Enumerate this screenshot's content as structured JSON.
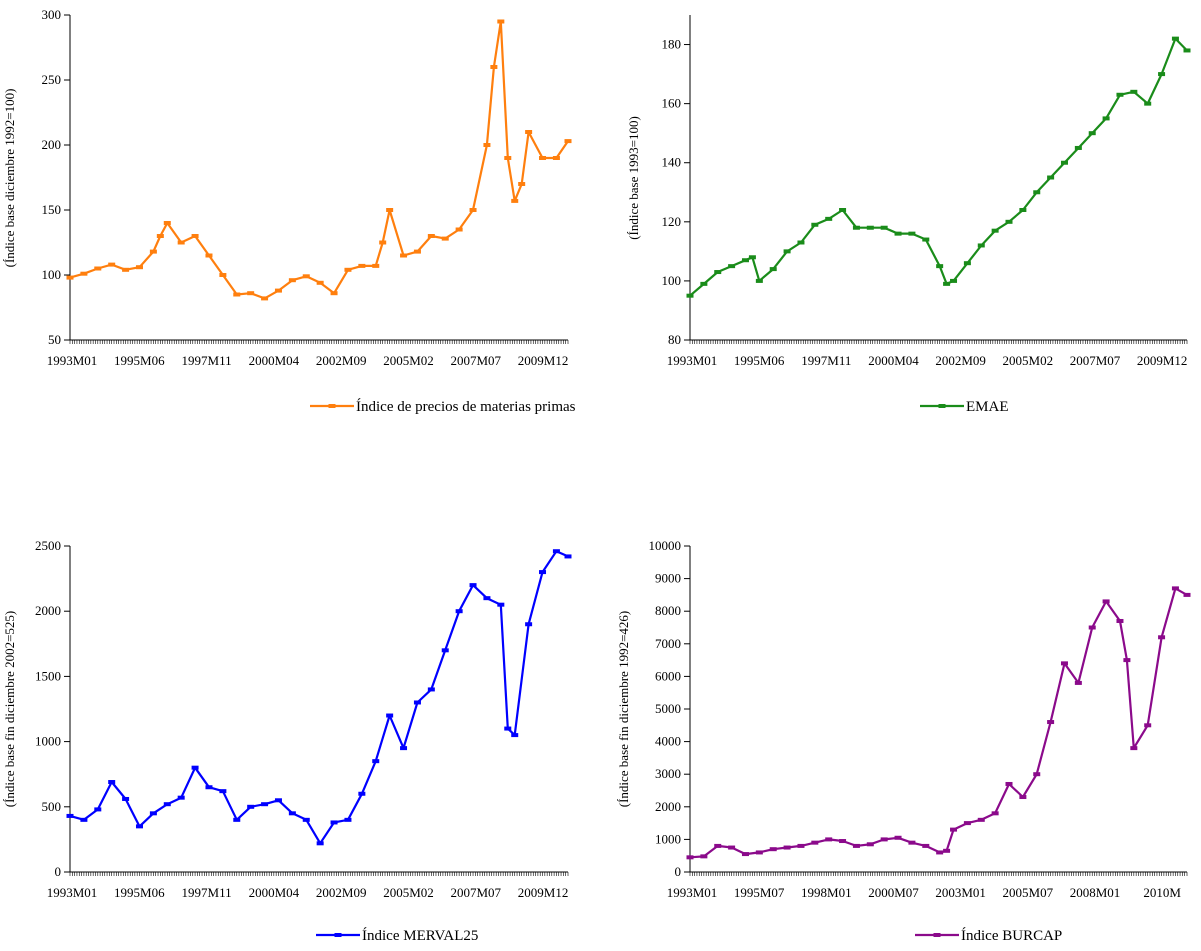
{
  "chart_data": [
    {
      "type": "line",
      "ylabel": "(Índice base diciembre 1992=100)",
      "ylim": [
        50,
        300
      ],
      "yticks": [
        50,
        100,
        150,
        200,
        250,
        300
      ],
      "xtick_labels": [
        "1993M01",
        "1995M06",
        "1997M11",
        "2000M04",
        "2002M09",
        "2005M02",
        "2007M07",
        "2009M12"
      ],
      "x_range": [
        "1993M01",
        "2010M12"
      ],
      "legend_position": "bottom",
      "series": [
        {
          "name": "Índice de precios de materias primas",
          "color": "#FF7F0E",
          "x": [
            "1993M01",
            "1993M07",
            "1994M01",
            "1994M07",
            "1995M01",
            "1995M07",
            "1996M01",
            "1996M04",
            "1996M07",
            "1997M01",
            "1997M07",
            "1998M01",
            "1998M07",
            "1999M01",
            "1999M07",
            "2000M01",
            "2000M07",
            "2001M01",
            "2001M07",
            "2002M01",
            "2002M07",
            "2003M01",
            "2003M07",
            "2004M01",
            "2004M04",
            "2004M07",
            "2005M01",
            "2005M07",
            "2006M01",
            "2006M07",
            "2007M01",
            "2007M07",
            "2008M01",
            "2008M04",
            "2008M07",
            "2008M10",
            "2009M01",
            "2009M04",
            "2009M07",
            "2010M01",
            "2010M07",
            "2010M12"
          ],
          "values": [
            98,
            101,
            105,
            108,
            104,
            106,
            118,
            130,
            140,
            125,
            130,
            115,
            100,
            85,
            86,
            82,
            88,
            96,
            99,
            94,
            86,
            104,
            107,
            107,
            125,
            150,
            115,
            118,
            130,
            128,
            135,
            150,
            200,
            260,
            295,
            190,
            157,
            170,
            210,
            190,
            190,
            203
          ]
        }
      ]
    },
    {
      "type": "line",
      "ylabel": "(Índice base 1993=100)",
      "ylim": [
        80,
        190
      ],
      "yticks": [
        80,
        100,
        120,
        140,
        160,
        180
      ],
      "xtick_labels": [
        "1993M01",
        "1995M06",
        "1997M11",
        "2000M04",
        "2002M09",
        "2005M02",
        "2007M07",
        "2009M12"
      ],
      "x_range": [
        "1993M01",
        "2010M12"
      ],
      "legend_position": "bottom",
      "series": [
        {
          "name": "EMAE",
          "color": "#1A8C1A",
          "x": [
            "1993M01",
            "1993M07",
            "1994M01",
            "1994M07",
            "1995M01",
            "1995M04",
            "1995M07",
            "1996M01",
            "1996M07",
            "1997M01",
            "1997M07",
            "1998M01",
            "1998M07",
            "1999M01",
            "1999M07",
            "2000M01",
            "2000M07",
            "2001M01",
            "2001M07",
            "2002M01",
            "2002M04",
            "2002M07",
            "2003M01",
            "2003M07",
            "2004M01",
            "2004M07",
            "2005M01",
            "2005M07",
            "2006M01",
            "2006M07",
            "2007M01",
            "2007M07",
            "2008M01",
            "2008M07",
            "2009M01",
            "2009M07",
            "2010M01",
            "2010M07",
            "2010M12"
          ],
          "values": [
            95,
            99,
            103,
            105,
            107,
            108,
            100,
            104,
            110,
            113,
            119,
            121,
            124,
            118,
            118,
            118,
            116,
            116,
            114,
            105,
            99,
            100,
            106,
            112,
            117,
            120,
            124,
            130,
            135,
            140,
            145,
            150,
            155,
            163,
            164,
            160,
            170,
            182,
            178
          ]
        }
      ]
    },
    {
      "type": "line",
      "ylabel": "(Índice base fin diciembre 2002=525)",
      "ylim": [
        0,
        2500
      ],
      "yticks": [
        0,
        500,
        1000,
        1500,
        2000,
        2500
      ],
      "xtick_labels": [
        "1993M01",
        "1995M06",
        "1997M11",
        "2000M04",
        "2002M09",
        "2005M02",
        "2007M07",
        "2009M12"
      ],
      "x_range": [
        "1993M01",
        "2010M12"
      ],
      "legend_position": "bottom",
      "series": [
        {
          "name": "Índice MERVAL25",
          "color": "#0000FF",
          "x": [
            "1993M01",
            "1993M07",
            "1994M01",
            "1994M07",
            "1995M01",
            "1995M07",
            "1996M01",
            "1996M07",
            "1997M01",
            "1997M07",
            "1998M01",
            "1998M07",
            "1999M01",
            "1999M07",
            "2000M01",
            "2000M07",
            "2001M01",
            "2001M07",
            "2002M01",
            "2002M07",
            "2003M01",
            "2003M07",
            "2004M01",
            "2004M07",
            "2005M01",
            "2005M07",
            "2006M01",
            "2006M07",
            "2007M01",
            "2007M07",
            "2008M01",
            "2008M07",
            "2008M10",
            "2009M01",
            "2009M07",
            "2010M01",
            "2010M07",
            "2010M12"
          ],
          "values": [
            430,
            400,
            480,
            690,
            560,
            350,
            450,
            520,
            570,
            800,
            650,
            620,
            400,
            500,
            520,
            550,
            450,
            400,
            220,
            380,
            400,
            600,
            850,
            1200,
            950,
            1300,
            1400,
            1700,
            2000,
            2200,
            2100,
            2050,
            1100,
            1050,
            1900,
            2300,
            2460,
            2420
          ]
        }
      ]
    },
    {
      "type": "line",
      "ylabel": "(Índice base fin diciembre 1992=426)",
      "ylim": [
        0,
        10000
      ],
      "yticks": [
        0,
        1000,
        2000,
        3000,
        4000,
        5000,
        6000,
        7000,
        8000,
        9000,
        10000
      ],
      "xtick_labels": [
        "1993M01",
        "1995M07",
        "1998M01",
        "2000M07",
        "2003M01",
        "2005M07",
        "2008M01",
        "2010M"
      ],
      "x_range": [
        "1993M01",
        "2010M12"
      ],
      "legend_position": "bottom",
      "series": [
        {
          "name": "Índice BURCAP",
          "color": "#8B0A8B",
          "x": [
            "1993M01",
            "1993M07",
            "1994M01",
            "1994M07",
            "1995M01",
            "1995M07",
            "1996M01",
            "1996M07",
            "1997M01",
            "1997M07",
            "1998M01",
            "1998M07",
            "1999M01",
            "1999M07",
            "2000M01",
            "2000M07",
            "2001M01",
            "2001M07",
            "2002M01",
            "2002M04",
            "2002M07",
            "2003M01",
            "2003M07",
            "2004M01",
            "2004M07",
            "2005M01",
            "2005M07",
            "2006M01",
            "2006M07",
            "2007M01",
            "2007M07",
            "2008M01",
            "2008M07",
            "2008M10",
            "2009M01",
            "2009M07",
            "2010M01",
            "2010M07",
            "2010M12"
          ],
          "values": [
            450,
            480,
            800,
            750,
            550,
            600,
            700,
            750,
            800,
            900,
            1000,
            950,
            800,
            850,
            1000,
            1050,
            900,
            800,
            600,
            650,
            1300,
            1500,
            1600,
            1800,
            2700,
            2300,
            3000,
            4600,
            6400,
            5800,
            7500,
            8300,
            7700,
            6500,
            3800,
            4500,
            7200,
            8700,
            8500
          ]
        }
      ]
    }
  ]
}
